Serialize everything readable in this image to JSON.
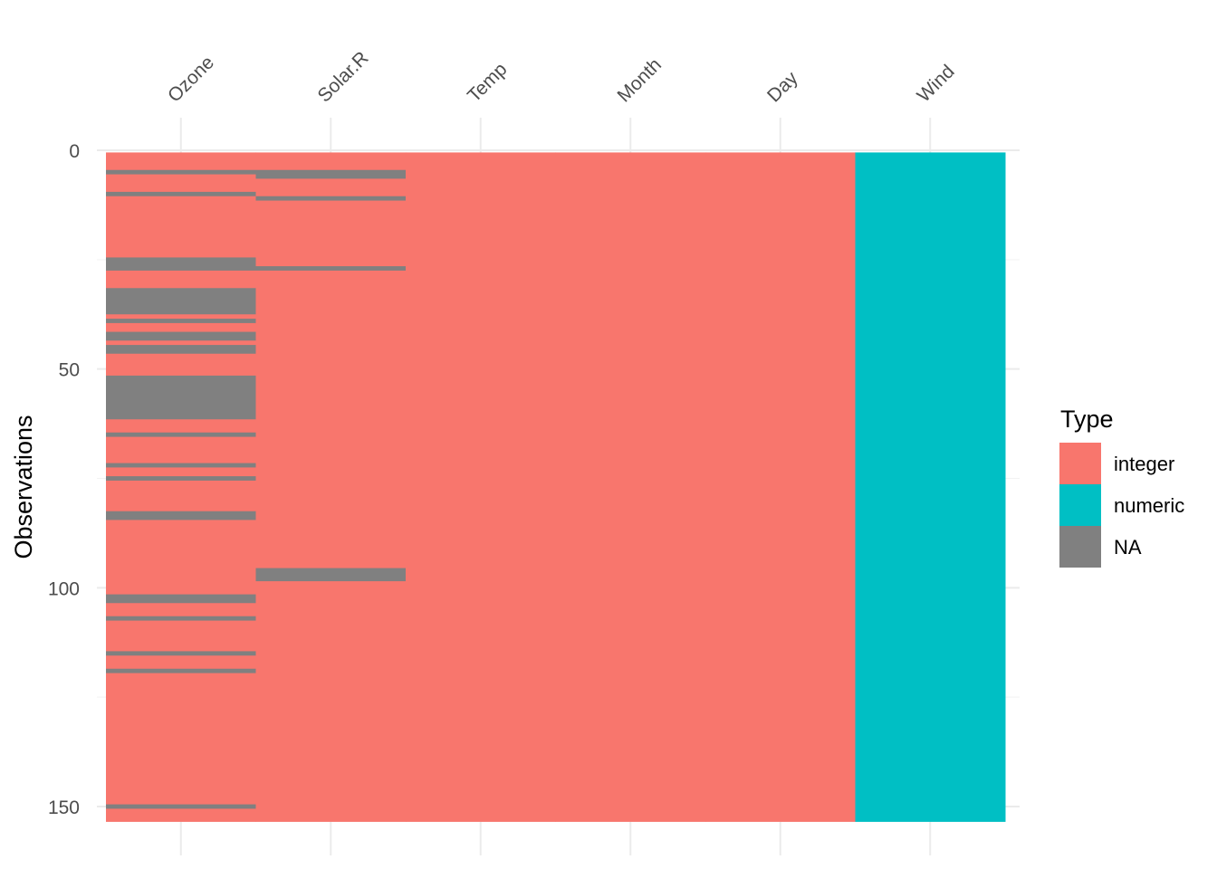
{
  "chart_data": {
    "type": "heatmap",
    "title": "",
    "xlabel": "",
    "ylabel": "Observations",
    "n_observations": 153,
    "columns": [
      {
        "name": "Ozone",
        "type": "integer",
        "na_rows": [
          5,
          10,
          25,
          26,
          27,
          32,
          33,
          34,
          35,
          36,
          37,
          39,
          42,
          43,
          45,
          46,
          52,
          53,
          54,
          55,
          56,
          57,
          58,
          59,
          60,
          61,
          65,
          72,
          75,
          83,
          84,
          102,
          103,
          107,
          115,
          119,
          150
        ]
      },
      {
        "name": "Solar.R",
        "type": "integer",
        "na_rows": [
          5,
          6,
          11,
          27,
          96,
          97,
          98
        ]
      },
      {
        "name": "Temp",
        "type": "integer",
        "na_rows": []
      },
      {
        "name": "Month",
        "type": "integer",
        "na_rows": []
      },
      {
        "name": "Day",
        "type": "integer",
        "na_rows": []
      },
      {
        "name": "Wind",
        "type": "numeric",
        "na_rows": []
      }
    ],
    "y_ticks": [
      0,
      50,
      100,
      150
    ],
    "y_tick_labels": [
      "0",
      "50",
      "100",
      "150"
    ],
    "ylim": [
      0,
      153
    ],
    "y_reversed": true,
    "grid": true,
    "legend": {
      "title": "Type",
      "placement": "right",
      "entries": [
        {
          "label": "integer",
          "color": "#F8766D"
        },
        {
          "label": "numeric",
          "color": "#00BFC4"
        },
        {
          "label": "NA",
          "color": "#808080"
        }
      ]
    }
  }
}
